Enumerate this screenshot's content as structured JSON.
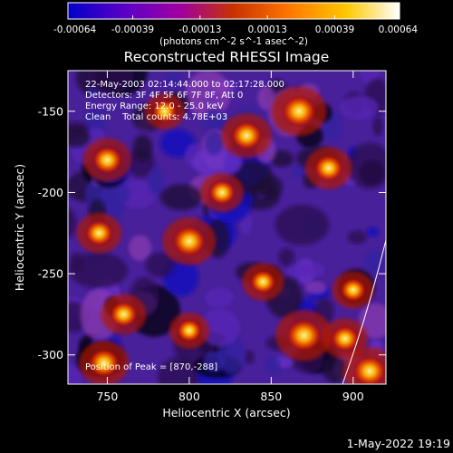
{
  "chart_data": {
    "type": "heatmap",
    "title": "Reconstructed RHESSI Image",
    "xlabel": "Heliocentric X (arcsec)",
    "ylabel": "Heliocentric Y (arcsec)",
    "xlim": [
      726,
      920
    ],
    "ylim": [
      -318,
      -125
    ],
    "x_ticks": [
      750,
      800,
      850,
      900
    ],
    "y_ticks": [
      -150,
      -200,
      -250,
      -300
    ],
    "colorbar": {
      "min": -0.00064,
      "max": 0.00064,
      "tick_values": [
        -0.00064,
        -0.00039,
        -0.00013,
        0.00013,
        0.00039,
        0.00064
      ],
      "tick_labels": [
        "-0.00064",
        "-0.00039",
        "-0.00013",
        "0.00013",
        "0.00039",
        "0.00064"
      ],
      "units_label": "(photons cm^-2 s^-1 asec^-2)",
      "colors": [
        "#0000c8",
        "#5a00c8",
        "#a000a0",
        "#c83200",
        "#ff7800",
        "#ffc800",
        "#ffffff"
      ]
    },
    "annotations": [
      "22-May-2003 02:14:44.000 to 02:17:28.000",
      "Detectors: 3F 4F 5F 6F 7F 8F, Att 0",
      "Energy Range: 12.0 - 25.0 keV",
      "Clean    Total counts: 4.78E+03",
      "Position of Peak = [870,-288]"
    ],
    "peak_position": [
      870,
      -288
    ],
    "bright_sources": [
      {
        "x": 835,
        "y": -165,
        "level": 0.75
      },
      {
        "x": 867,
        "y": -150,
        "level": 0.9
      },
      {
        "x": 885,
        "y": -185,
        "level": 0.65
      },
      {
        "x": 750,
        "y": -180,
        "level": 0.7
      },
      {
        "x": 800,
        "y": -230,
        "level": 0.85
      },
      {
        "x": 745,
        "y": -225,
        "level": 0.6
      },
      {
        "x": 820,
        "y": -200,
        "level": 0.55
      },
      {
        "x": 760,
        "y": -275,
        "level": 0.6
      },
      {
        "x": 748,
        "y": -305,
        "level": 0.75
      },
      {
        "x": 800,
        "y": -285,
        "level": 0.45
      },
      {
        "x": 845,
        "y": -255,
        "level": 0.5
      },
      {
        "x": 870,
        "y": -288,
        "level": 0.95
      },
      {
        "x": 895,
        "y": -290,
        "level": 0.6
      },
      {
        "x": 910,
        "y": -310,
        "level": 0.85
      },
      {
        "x": 900,
        "y": -260,
        "level": 0.5
      },
      {
        "x": 785,
        "y": -150,
        "level": 0.45
      }
    ]
  },
  "footer_timestamp": "1-May-2022 19:19"
}
